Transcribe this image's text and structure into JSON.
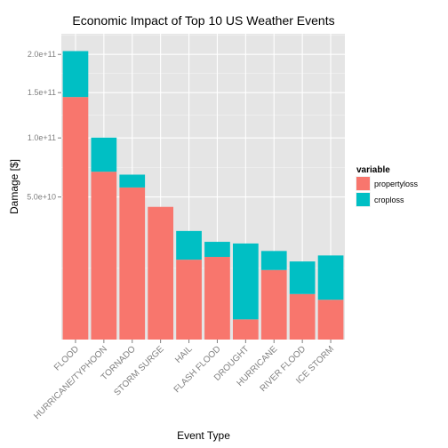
{
  "chart_data": {
    "type": "bar",
    "stacked": true,
    "title": "Economic Impact of Top 10 US Weather Events",
    "xlabel": "Event Type",
    "ylabel": "Damage [$]",
    "y_scale": "sqrt",
    "ylim": [
      0,
      230000000000
    ],
    "y_ticks": [
      50000000000,
      100000000000,
      150000000000,
      200000000000
    ],
    "y_tick_labels": [
      "5.0e+10",
      "1.0e+11",
      "1.5e+11",
      "2.0e+11"
    ],
    "grid": true,
    "legend_position": "right",
    "legend_title": "variable",
    "categories": [
      "FLOOD",
      "HURRICANE/TYPHOON",
      "TORNADO",
      "STORM SURGE",
      "HAIL",
      "FLASH FLOOD",
      "DROUGHT",
      "HURRICANE",
      "RIVER FLOOD",
      "ICE STORM"
    ],
    "series": [
      {
        "name": "propertyloss",
        "color": "#F8766D",
        "values": [
          144700000000,
          69300000000,
          56900000000,
          43300000000,
          15700000000,
          16800000000,
          1000000000,
          11900000000,
          5100000000,
          3900000000
        ]
      },
      {
        "name": "croploss",
        "color": "#00BFC4",
        "values": [
          60000000000,
          31000000000,
          10000000000,
          0,
          13300000000,
          6700000000,
          21700000000,
          7400000000,
          9900000000,
          13500000000
        ]
      }
    ]
  }
}
